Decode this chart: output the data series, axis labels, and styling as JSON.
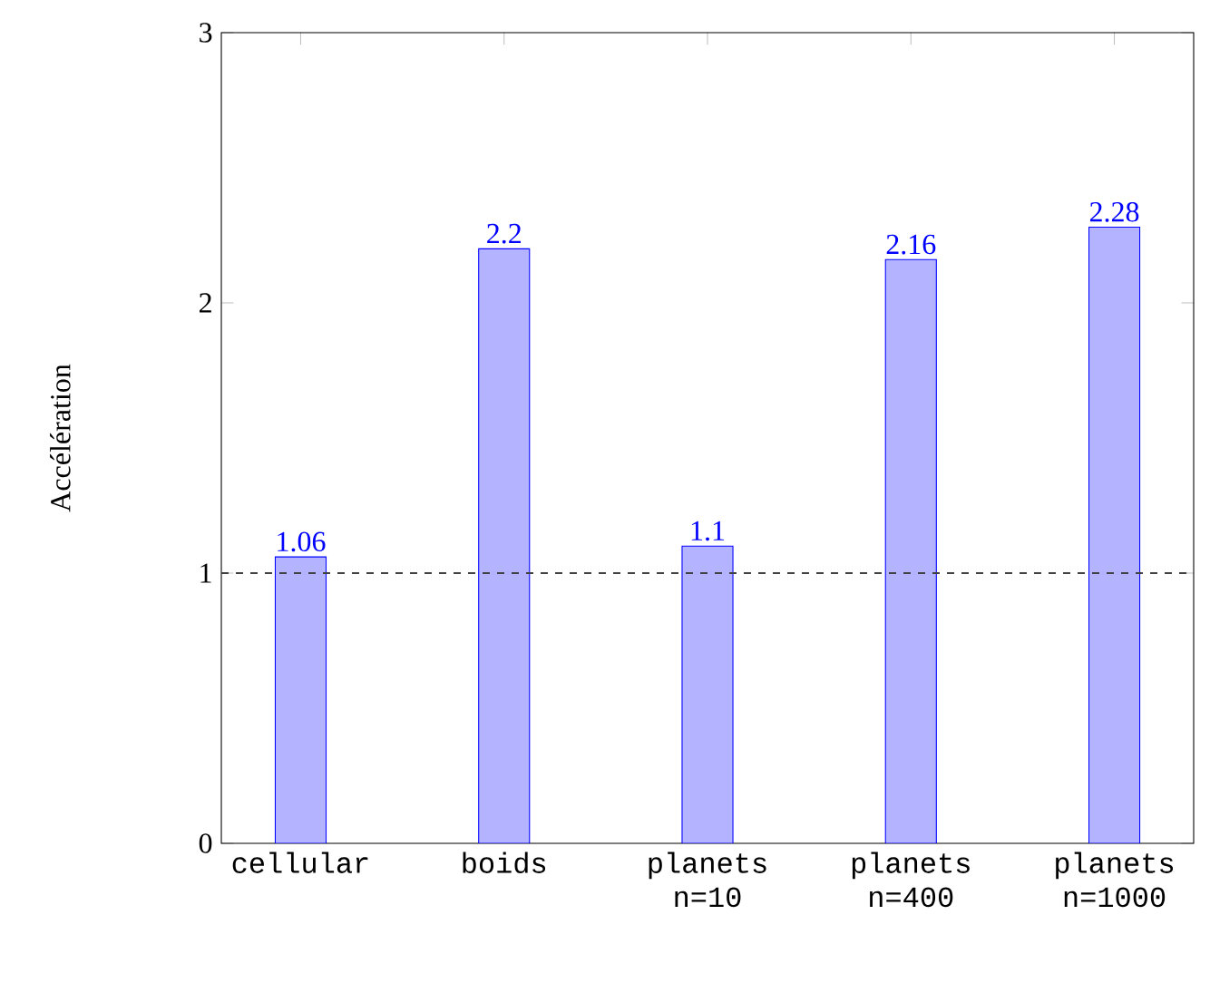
{
  "chart_data": {
    "type": "bar",
    "ylabel": "Accélération",
    "categories": [
      "cellular",
      "boids",
      "planets n=10",
      "planets n=400",
      "planets n=1000"
    ],
    "values": [
      1.06,
      2.2,
      1.1,
      2.16,
      2.28
    ],
    "color": "#b3b3ff",
    "ylim": [
      0,
      3
    ],
    "yticks": [
      0,
      1,
      2,
      3
    ],
    "ref_lines": [
      {
        "axis": "y",
        "value": 1,
        "color": "#404040",
        "line_style": "dashed"
      }
    ],
    "data_labels": true,
    "grid": false
  }
}
